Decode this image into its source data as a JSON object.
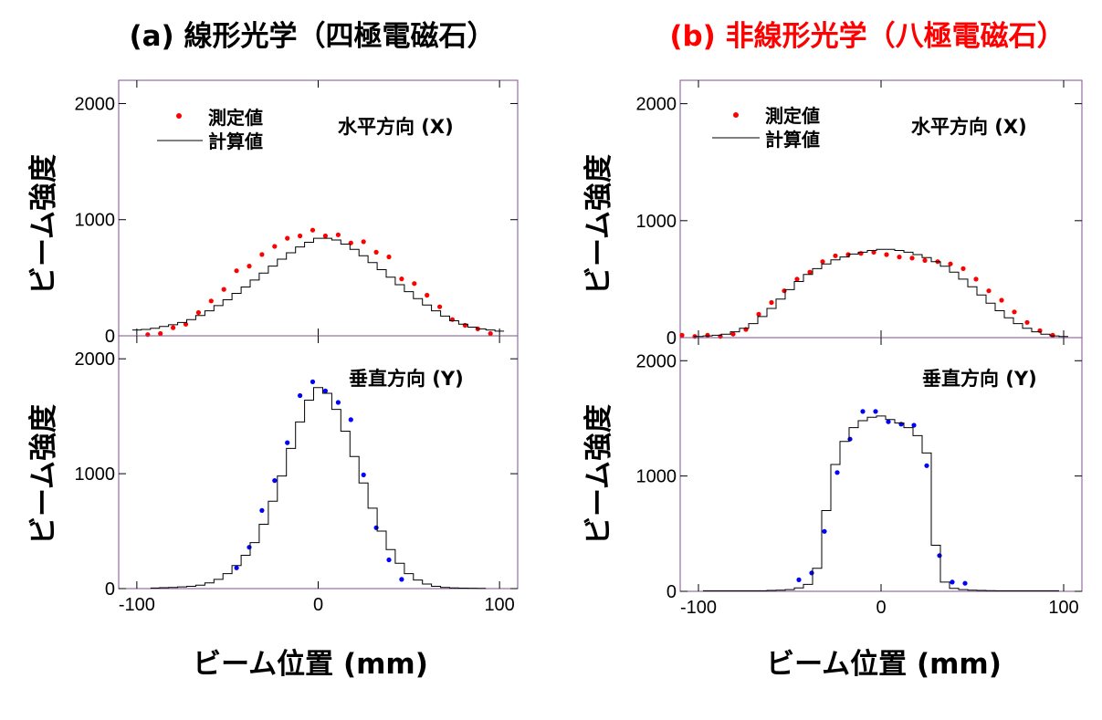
{
  "panels": {
    "a": {
      "title": "(a) 線形光学（四極電磁石）",
      "title_color": "#000000"
    },
    "b": {
      "title": "(b) 非線形光学（八極電磁石）",
      "title_color": "#ff0000"
    }
  },
  "labels": {
    "ylabel": "ビーム強度",
    "xlabel": "ビーム位置 (mm)",
    "measured": "測定値",
    "calculated": "計算値",
    "horizontal": "水平方向 (X)",
    "vertical": "垂直方向 (Y)"
  },
  "colors": {
    "horizontal_points": "#ff0000",
    "vertical_points": "#0000ff",
    "frame": "#7f4f8f",
    "line": "#000000"
  },
  "chart_data": [
    {
      "id": "a-x",
      "type": "scatter+step",
      "panel": "a",
      "direction": "horizontal",
      "xlim": [
        -110,
        110
      ],
      "ylim": [
        0,
        2200
      ],
      "xticks": [
        -100,
        0,
        100
      ],
      "yticks": [
        0,
        1000,
        2000
      ],
      "series": [
        {
          "name": "測定値",
          "kind": "scatter",
          "color": "#ff0000",
          "x": [
            -94,
            -87,
            -80,
            -73,
            -66,
            -59,
            -52,
            -45,
            -38,
            -31,
            -24,
            -17,
            -10,
            -3,
            4,
            11,
            18,
            25,
            32,
            39,
            46,
            53,
            60,
            67,
            74,
            81,
            88,
            95
          ],
          "y": [
            10,
            20,
            70,
            100,
            200,
            300,
            400,
            560,
            600,
            700,
            770,
            840,
            860,
            910,
            860,
            870,
            800,
            810,
            720,
            680,
            490,
            450,
            350,
            250,
            140,
            90,
            60,
            20
          ]
        },
        {
          "name": "計算値",
          "kind": "step",
          "color": "#000000",
          "x": [
            -100,
            -95,
            -90,
            -85,
            -80,
            -75,
            -70,
            -65,
            -60,
            -55,
            -50,
            -45,
            -40,
            -35,
            -30,
            -25,
            -20,
            -15,
            -10,
            -5,
            0,
            5,
            10,
            15,
            20,
            25,
            30,
            35,
            40,
            45,
            50,
            55,
            60,
            65,
            70,
            75,
            80,
            85,
            90,
            95,
            100
          ],
          "y": [
            50,
            55,
            65,
            80,
            95,
            115,
            140,
            175,
            215,
            260,
            310,
            365,
            420,
            480,
            540,
            600,
            660,
            715,
            765,
            805,
            840,
            840,
            825,
            790,
            745,
            690,
            630,
            570,
            505,
            440,
            380,
            320,
            265,
            215,
            170,
            130,
            100,
            75,
            60,
            50,
            40
          ]
        }
      ]
    },
    {
      "id": "a-y",
      "type": "scatter+step",
      "panel": "a",
      "direction": "vertical",
      "xlim": [
        -110,
        110
      ],
      "ylim": [
        0,
        2200
      ],
      "xticks": [
        -100,
        0,
        100
      ],
      "yticks": [
        0,
        1000,
        2000
      ],
      "series": [
        {
          "name": "測定値",
          "kind": "scatter",
          "color": "#0000ff",
          "x": [
            -45,
            -38,
            -31,
            -24,
            -17,
            -10,
            -3,
            4,
            11,
            18,
            25,
            32,
            39,
            46
          ],
          "y": [
            180,
            360,
            680,
            940,
            1270,
            1680,
            1800,
            1720,
            1620,
            1470,
            990,
            530,
            250,
            80
          ]
        },
        {
          "name": "計算値",
          "kind": "step",
          "color": "#000000",
          "x": [
            -90,
            -85,
            -80,
            -75,
            -70,
            -65,
            -60,
            -55,
            -50,
            -45,
            -40,
            -35,
            -30,
            -25,
            -20,
            -15,
            -10,
            -5,
            0,
            5,
            10,
            15,
            20,
            25,
            30,
            35,
            40,
            45,
            50,
            55,
            60,
            65,
            70,
            75,
            80,
            85,
            90
          ],
          "y": [
            5,
            8,
            10,
            15,
            20,
            30,
            50,
            80,
            130,
            200,
            290,
            400,
            560,
            760,
            980,
            1220,
            1450,
            1640,
            1750,
            1700,
            1560,
            1370,
            1150,
            920,
            700,
            500,
            340,
            220,
            130,
            75,
            40,
            20,
            10,
            6,
            4,
            3,
            2
          ]
        }
      ]
    },
    {
      "id": "b-x",
      "type": "scatter+step",
      "panel": "b",
      "direction": "horizontal",
      "xlim": [
        -110,
        110
      ],
      "ylim": [
        0,
        2200
      ],
      "xticks": [
        -100,
        0,
        100
      ],
      "yticks": [
        0,
        1000,
        2000
      ],
      "series": [
        {
          "name": "測定値",
          "kind": "scatter",
          "color": "#ff0000",
          "x": [
            -109,
            -102,
            -95,
            -88,
            -81,
            -74,
            -67,
            -60,
            -53,
            -46,
            -39,
            -32,
            -25,
            -18,
            -11,
            -4,
            3,
            10,
            17,
            24,
            31,
            38,
            45,
            52,
            59,
            66,
            73,
            80,
            87,
            94
          ],
          "y": [
            20,
            10,
            20,
            10,
            30,
            70,
            200,
            300,
            400,
            500,
            560,
            650,
            700,
            710,
            720,
            730,
            710,
            690,
            680,
            660,
            650,
            630,
            590,
            500,
            400,
            320,
            220,
            130,
            60,
            20
          ]
        },
        {
          "name": "計算値",
          "kind": "step",
          "color": "#000000",
          "x": [
            -100,
            -95,
            -90,
            -85,
            -80,
            -75,
            -70,
            -65,
            -60,
            -55,
            -50,
            -45,
            -40,
            -35,
            -30,
            -25,
            -20,
            -15,
            -10,
            -5,
            0,
            5,
            10,
            15,
            20,
            25,
            30,
            35,
            40,
            45,
            50,
            55,
            60,
            65,
            70,
            75,
            80,
            85,
            90,
            95,
            100
          ],
          "y": [
            10,
            15,
            20,
            30,
            50,
            80,
            120,
            180,
            250,
            330,
            410,
            480,
            540,
            590,
            630,
            665,
            690,
            715,
            730,
            745,
            755,
            755,
            745,
            730,
            710,
            685,
            650,
            610,
            560,
            500,
            435,
            365,
            295,
            230,
            170,
            120,
            80,
            50,
            30,
            15,
            10
          ]
        }
      ]
    },
    {
      "id": "b-y",
      "type": "scatter+step",
      "panel": "b",
      "direction": "vertical",
      "xlim": [
        -110,
        110
      ],
      "ylim": [
        0,
        2200
      ],
      "xticks": [
        -100,
        0,
        100
      ],
      "yticks": [
        0,
        1000,
        2000
      ],
      "series": [
        {
          "name": "測定値",
          "kind": "scatter",
          "color": "#0000ff",
          "x": [
            -45,
            -38,
            -31,
            -24,
            -17,
            -10,
            -3,
            4,
            11,
            18,
            25,
            32,
            39,
            46
          ],
          "y": [
            100,
            160,
            520,
            1030,
            1320,
            1560,
            1560,
            1470,
            1450,
            1440,
            1090,
            310,
            80,
            70
          ]
        },
        {
          "name": "計算値",
          "kind": "step",
          "color": "#000000",
          "x": [
            -95,
            -90,
            -85,
            -80,
            -75,
            -70,
            -65,
            -60,
            -55,
            -50,
            -45,
            -40,
            -35,
            -30,
            -25,
            -20,
            -15,
            -10,
            -5,
            0,
            5,
            10,
            15,
            20,
            25,
            30,
            35,
            40,
            45,
            50,
            55,
            60,
            65,
            70,
            75,
            80,
            85,
            90,
            95
          ],
          "y": [
            5,
            5,
            5,
            5,
            5,
            5,
            5,
            8,
            10,
            15,
            30,
            60,
            200,
            700,
            1100,
            1300,
            1420,
            1480,
            1510,
            1520,
            1490,
            1460,
            1420,
            1350,
            1200,
            400,
            80,
            25,
            15,
            10,
            8,
            6,
            5,
            5,
            5,
            5,
            5,
            5,
            5
          ]
        }
      ]
    }
  ]
}
